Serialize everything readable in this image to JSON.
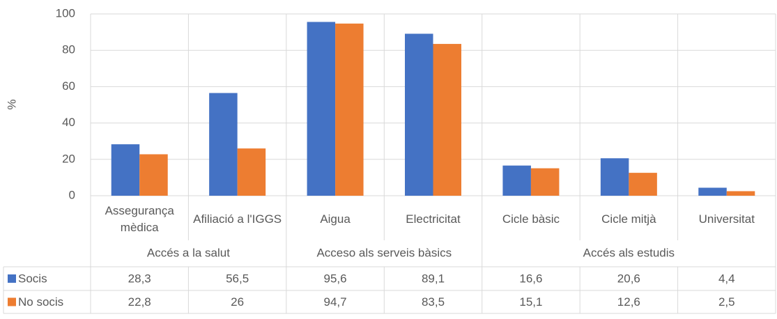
{
  "chart_data": {
    "type": "bar",
    "y_label": "%",
    "categories": [
      {
        "label": "Assegurança mèdica",
        "group": "Accés a la salut"
      },
      {
        "label": "Afiliació a l'IGGS",
        "group": "Accés a la salut"
      },
      {
        "label": "Aigua",
        "group": "Acceso als serveis bàsics"
      },
      {
        "label": "Electricitat",
        "group": "Acceso als serveis bàsics"
      },
      {
        "label": "Cicle bàsic",
        "group": "Accés als estudis"
      },
      {
        "label": "Cicle mitjà",
        "group": "Accés als estudis"
      },
      {
        "label": "Universitat",
        "group": "Accés als estudis"
      }
    ],
    "series": [
      {
        "name": "Socis",
        "color": "#4472c4",
        "values": [
          28.3,
          56.5,
          95.6,
          89.1,
          16.6,
          20.6,
          4.4
        ],
        "value_labels": [
          "28,3",
          "56,5",
          "95,6",
          "89,1",
          "16,6",
          "20,6",
          "4,4"
        ]
      },
      {
        "name": "No socis",
        "color": "#ed7d31",
        "values": [
          22.8,
          26,
          94.7,
          83.5,
          15.1,
          12.6,
          2.5
        ],
        "value_labels": [
          "22,8",
          "26",
          "94,7",
          "83,5",
          "15,1",
          "12,6",
          "2,5"
        ]
      }
    ],
    "ylim": [
      0,
      100
    ],
    "yticks": [
      0,
      20,
      40,
      60,
      80,
      100
    ],
    "grid": true,
    "data_table": true
  }
}
